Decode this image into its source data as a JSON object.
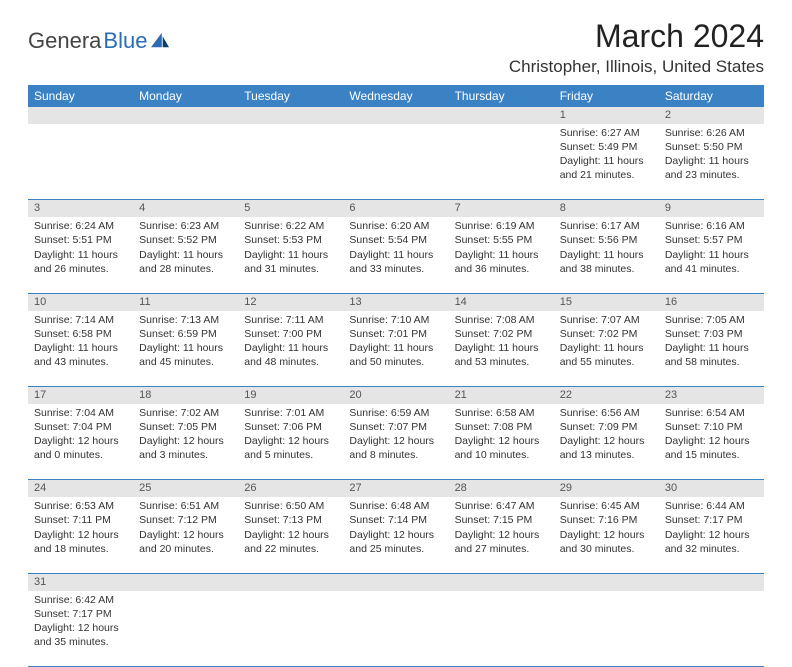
{
  "logo": {
    "left": "Genera",
    "right": "Blue"
  },
  "header": {
    "title": "March 2024",
    "location": "Christopher, Illinois, United States"
  },
  "styling": {
    "header_bg": "#3b82c4",
    "header_fg": "#ffffff",
    "daynum_bg": "#e5e5e5",
    "border_color": "#3b82c4",
    "body_font_size": 10.5,
    "title_font_size": 32,
    "location_font_size": 17
  },
  "day_labels": [
    "Sunday",
    "Monday",
    "Tuesday",
    "Wednesday",
    "Thursday",
    "Friday",
    "Saturday"
  ],
  "weeks": [
    {
      "nums": [
        "",
        "",
        "",
        "",
        "",
        "1",
        "2"
      ],
      "cells": [
        null,
        null,
        null,
        null,
        null,
        {
          "rise": "6:27 AM",
          "set": "5:49 PM",
          "dh": 11,
          "dm": 21
        },
        {
          "rise": "6:26 AM",
          "set": "5:50 PM",
          "dh": 11,
          "dm": 23
        }
      ]
    },
    {
      "nums": [
        "3",
        "4",
        "5",
        "6",
        "7",
        "8",
        "9"
      ],
      "cells": [
        {
          "rise": "6:24 AM",
          "set": "5:51 PM",
          "dh": 11,
          "dm": 26
        },
        {
          "rise": "6:23 AM",
          "set": "5:52 PM",
          "dh": 11,
          "dm": 28
        },
        {
          "rise": "6:22 AM",
          "set": "5:53 PM",
          "dh": 11,
          "dm": 31
        },
        {
          "rise": "6:20 AM",
          "set": "5:54 PM",
          "dh": 11,
          "dm": 33
        },
        {
          "rise": "6:19 AM",
          "set": "5:55 PM",
          "dh": 11,
          "dm": 36
        },
        {
          "rise": "6:17 AM",
          "set": "5:56 PM",
          "dh": 11,
          "dm": 38
        },
        {
          "rise": "6:16 AM",
          "set": "5:57 PM",
          "dh": 11,
          "dm": 41
        }
      ]
    },
    {
      "nums": [
        "10",
        "11",
        "12",
        "13",
        "14",
        "15",
        "16"
      ],
      "cells": [
        {
          "rise": "7:14 AM",
          "set": "6:58 PM",
          "dh": 11,
          "dm": 43
        },
        {
          "rise": "7:13 AM",
          "set": "6:59 PM",
          "dh": 11,
          "dm": 45
        },
        {
          "rise": "7:11 AM",
          "set": "7:00 PM",
          "dh": 11,
          "dm": 48
        },
        {
          "rise": "7:10 AM",
          "set": "7:01 PM",
          "dh": 11,
          "dm": 50
        },
        {
          "rise": "7:08 AM",
          "set": "7:02 PM",
          "dh": 11,
          "dm": 53
        },
        {
          "rise": "7:07 AM",
          "set": "7:02 PM",
          "dh": 11,
          "dm": 55
        },
        {
          "rise": "7:05 AM",
          "set": "7:03 PM",
          "dh": 11,
          "dm": 58
        }
      ]
    },
    {
      "nums": [
        "17",
        "18",
        "19",
        "20",
        "21",
        "22",
        "23"
      ],
      "cells": [
        {
          "rise": "7:04 AM",
          "set": "7:04 PM",
          "dh": 12,
          "dm": 0
        },
        {
          "rise": "7:02 AM",
          "set": "7:05 PM",
          "dh": 12,
          "dm": 3
        },
        {
          "rise": "7:01 AM",
          "set": "7:06 PM",
          "dh": 12,
          "dm": 5
        },
        {
          "rise": "6:59 AM",
          "set": "7:07 PM",
          "dh": 12,
          "dm": 8
        },
        {
          "rise": "6:58 AM",
          "set": "7:08 PM",
          "dh": 12,
          "dm": 10
        },
        {
          "rise": "6:56 AM",
          "set": "7:09 PM",
          "dh": 12,
          "dm": 13
        },
        {
          "rise": "6:54 AM",
          "set": "7:10 PM",
          "dh": 12,
          "dm": 15
        }
      ]
    },
    {
      "nums": [
        "24",
        "25",
        "26",
        "27",
        "28",
        "29",
        "30"
      ],
      "cells": [
        {
          "rise": "6:53 AM",
          "set": "7:11 PM",
          "dh": 12,
          "dm": 18
        },
        {
          "rise": "6:51 AM",
          "set": "7:12 PM",
          "dh": 12,
          "dm": 20
        },
        {
          "rise": "6:50 AM",
          "set": "7:13 PM",
          "dh": 12,
          "dm": 22
        },
        {
          "rise": "6:48 AM",
          "set": "7:14 PM",
          "dh": 12,
          "dm": 25
        },
        {
          "rise": "6:47 AM",
          "set": "7:15 PM",
          "dh": 12,
          "dm": 27
        },
        {
          "rise": "6:45 AM",
          "set": "7:16 PM",
          "dh": 12,
          "dm": 30
        },
        {
          "rise": "6:44 AM",
          "set": "7:17 PM",
          "dh": 12,
          "dm": 32
        }
      ]
    },
    {
      "nums": [
        "31",
        "",
        "",
        "",
        "",
        "",
        ""
      ],
      "cells": [
        {
          "rise": "6:42 AM",
          "set": "7:17 PM",
          "dh": 12,
          "dm": 35
        },
        null,
        null,
        null,
        null,
        null,
        null
      ]
    }
  ],
  "labels": {
    "sunrise": "Sunrise:",
    "sunset": "Sunset:",
    "daylight": "Daylight:",
    "hours": "hours",
    "and": "and",
    "minutes": "minutes."
  }
}
